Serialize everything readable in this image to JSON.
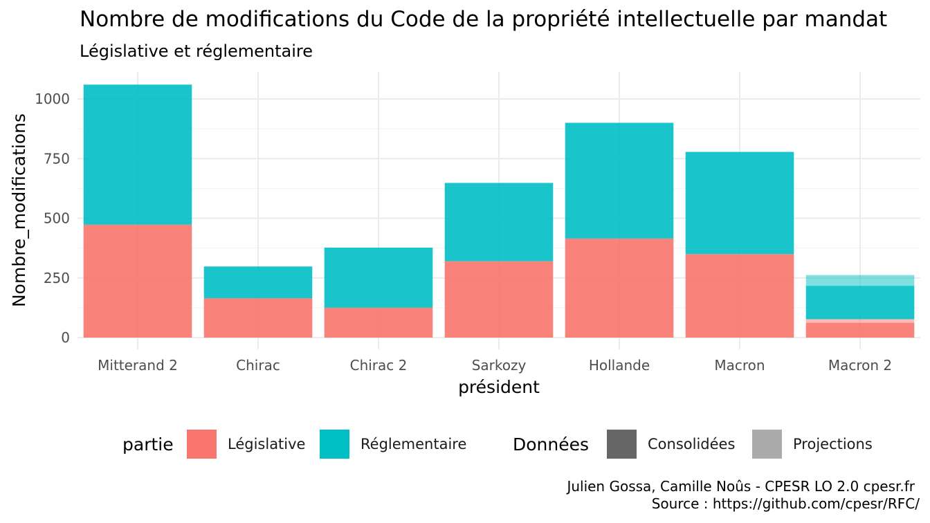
{
  "chart_data": {
    "type": "bar",
    "stacked": true,
    "title": "Nombre de modifications du Code de la propriété intellectuelle par mandat",
    "subtitle": "Législative et réglementaire",
    "xlabel": "président",
    "ylabel": "Nombre_modifications",
    "ylim": [
      0,
      1120
    ],
    "yticks": [
      0,
      250,
      500,
      750,
      1000
    ],
    "categories": [
      "Mitterand 2",
      "Chirac",
      "Chirac 2",
      "Sarkozy",
      "Hollande",
      "Macron",
      "Macron 2"
    ],
    "series": [
      {
        "name": "Législative",
        "color": "#F8766D",
        "consolidated": [
          473,
          165,
          125,
          320,
          415,
          350,
          62
        ],
        "projected": [
          0,
          0,
          0,
          0,
          0,
          0,
          15
        ]
      },
      {
        "name": "Réglementaire",
        "color": "#00BFC4",
        "consolidated": [
          587,
          133,
          252,
          328,
          485,
          428,
          140
        ],
        "projected": [
          0,
          0,
          0,
          0,
          0,
          0,
          45
        ]
      }
    ],
    "legend": {
      "position": "bottom",
      "fill_title": "partie",
      "fill_items": [
        "Législative",
        "Réglementaire"
      ],
      "alpha_title": "Données",
      "alpha_items": [
        "Consolidées",
        "Projections"
      ],
      "alpha_colors": [
        "#666666",
        "#ababab"
      ]
    },
    "grid": true,
    "caption": [
      "Julien Gossa, Camille Noûs - CPESR LO 2.0 cpesr.fr",
      "Source : https://github.com/cpesr/RFC/"
    ]
  }
}
